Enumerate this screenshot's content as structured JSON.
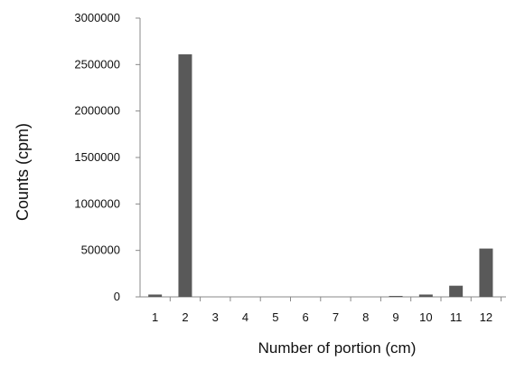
{
  "chart_data": {
    "type": "bar",
    "title": "",
    "xlabel": "Number of portion (cm)",
    "ylabel": "Counts (cpm)",
    "categories": [
      "1",
      "2",
      "3",
      "4",
      "5",
      "6",
      "7",
      "8",
      "9",
      "10",
      "11",
      "12"
    ],
    "values": [
      25000,
      2610000,
      0,
      0,
      0,
      0,
      0,
      0,
      10000,
      25000,
      120000,
      520000
    ],
    "ylim": [
      0,
      3000000
    ],
    "yticks": [
      "0",
      "500000",
      "1000000",
      "1500000",
      "2000000",
      "2500000",
      "3000000"
    ],
    "grid": false,
    "legend": "none",
    "bar_color": "#595959"
  }
}
